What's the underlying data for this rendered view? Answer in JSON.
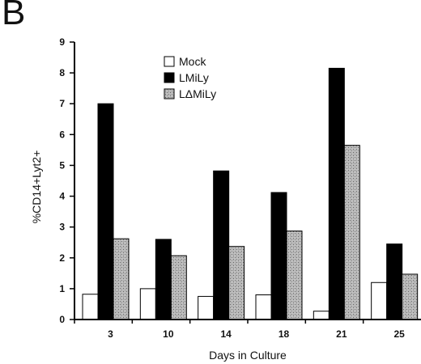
{
  "panel_label": "B",
  "chart_data": {
    "type": "bar",
    "title": "",
    "xlabel": "Days in Culture",
    "ylabel": "%CD14+Lyt2+",
    "categories": [
      "3",
      "10",
      "14",
      "18",
      "21",
      "25"
    ],
    "ylim": [
      0,
      9
    ],
    "yticks": [
      "0",
      "1",
      "2",
      "3",
      "4",
      "5",
      "6",
      "7",
      "8",
      "9"
    ],
    "grid": false,
    "legend_position": "top-center",
    "series": [
      {
        "name": "Mock",
        "values": [
          0.82,
          1.0,
          0.75,
          0.8,
          0.27,
          1.2
        ],
        "fill": "white"
      },
      {
        "name": "LMiLy",
        "values": [
          7.0,
          2.6,
          4.82,
          4.12,
          8.15,
          2.45
        ],
        "fill": "black"
      },
      {
        "name": "LΔMiLy",
        "values": [
          2.62,
          2.07,
          2.37,
          2.87,
          5.65,
          1.47
        ],
        "fill": "hatched"
      }
    ]
  }
}
